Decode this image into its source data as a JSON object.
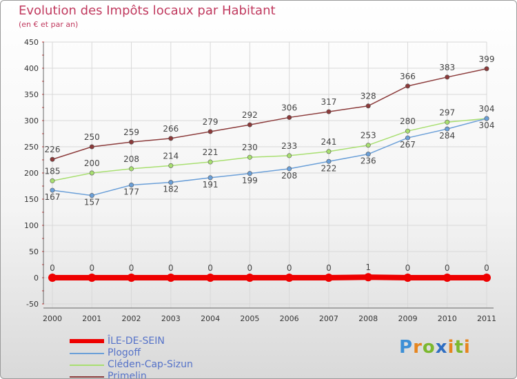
{
  "header": {
    "title": "Evolution des Impôts locaux par Habitant",
    "subtitle": "(en € et par an)"
  },
  "brand": {
    "text": "Proxiti",
    "colors": [
      "#3d8fd6",
      "#e6851e",
      "#7cb82f",
      "#2f6ec2",
      "#e6851e",
      "#7cb82f",
      "#e6851e"
    ]
  },
  "chart_data": {
    "type": "line",
    "title": "Evolution des Impôts locaux par Habitant",
    "subtitle": "(en € et par an)",
    "xlabel": "",
    "ylabel": "",
    "categories": [
      "2000",
      "2001",
      "2002",
      "2003",
      "2004",
      "2005",
      "2006",
      "2007",
      "2008",
      "2009",
      "2010",
      "2011"
    ],
    "ylim": [
      -50,
      450
    ],
    "yticks": [
      -50,
      0,
      50,
      100,
      150,
      200,
      250,
      300,
      350,
      400,
      450
    ],
    "grid": true,
    "legend_position": "bottom-left",
    "series": [
      {
        "name": "ÎLE-DE-SEIN",
        "color": "#ee0000",
        "values": [
          0,
          0,
          0,
          0,
          0,
          0,
          0,
          0,
          1,
          0,
          0,
          0
        ],
        "labels": [
          "0",
          "0",
          "0",
          "0",
          "0",
          "0",
          "0",
          "0",
          "1",
          "0",
          "0",
          "0"
        ],
        "labelPos": "above"
      },
      {
        "name": "Plogoff",
        "color": "#6a9fd8",
        "values": [
          167,
          157,
          177,
          182,
          191,
          199,
          208,
          222,
          236,
          267,
          284,
          304
        ],
        "labels": [
          "167",
          "157",
          "177",
          "182",
          "191",
          "199",
          "208",
          "222",
          "236",
          "267",
          "284",
          "304"
        ],
        "labelPos": "below"
      },
      {
        "name": "Cléden-Cap-Sizun",
        "color": "#a8df70",
        "values": [
          185,
          200,
          208,
          214,
          221,
          230,
          233,
          241,
          253,
          280,
          297,
          304
        ],
        "labels": [
          "185",
          "200",
          "208",
          "214",
          "221",
          "230",
          "233",
          "241",
          "253",
          "280",
          "297",
          "304"
        ],
        "labelPos": "above"
      },
      {
        "name": "Primelin",
        "color": "#8b3a3a",
        "values": [
          226,
          250,
          259,
          266,
          279,
          292,
          306,
          317,
          328,
          366,
          383,
          399
        ],
        "labels": [
          "226",
          "250",
          "259",
          "266",
          "279",
          "292",
          "306",
          "317",
          "328",
          "366",
          "383",
          "399"
        ],
        "labelPos": "above"
      }
    ]
  }
}
